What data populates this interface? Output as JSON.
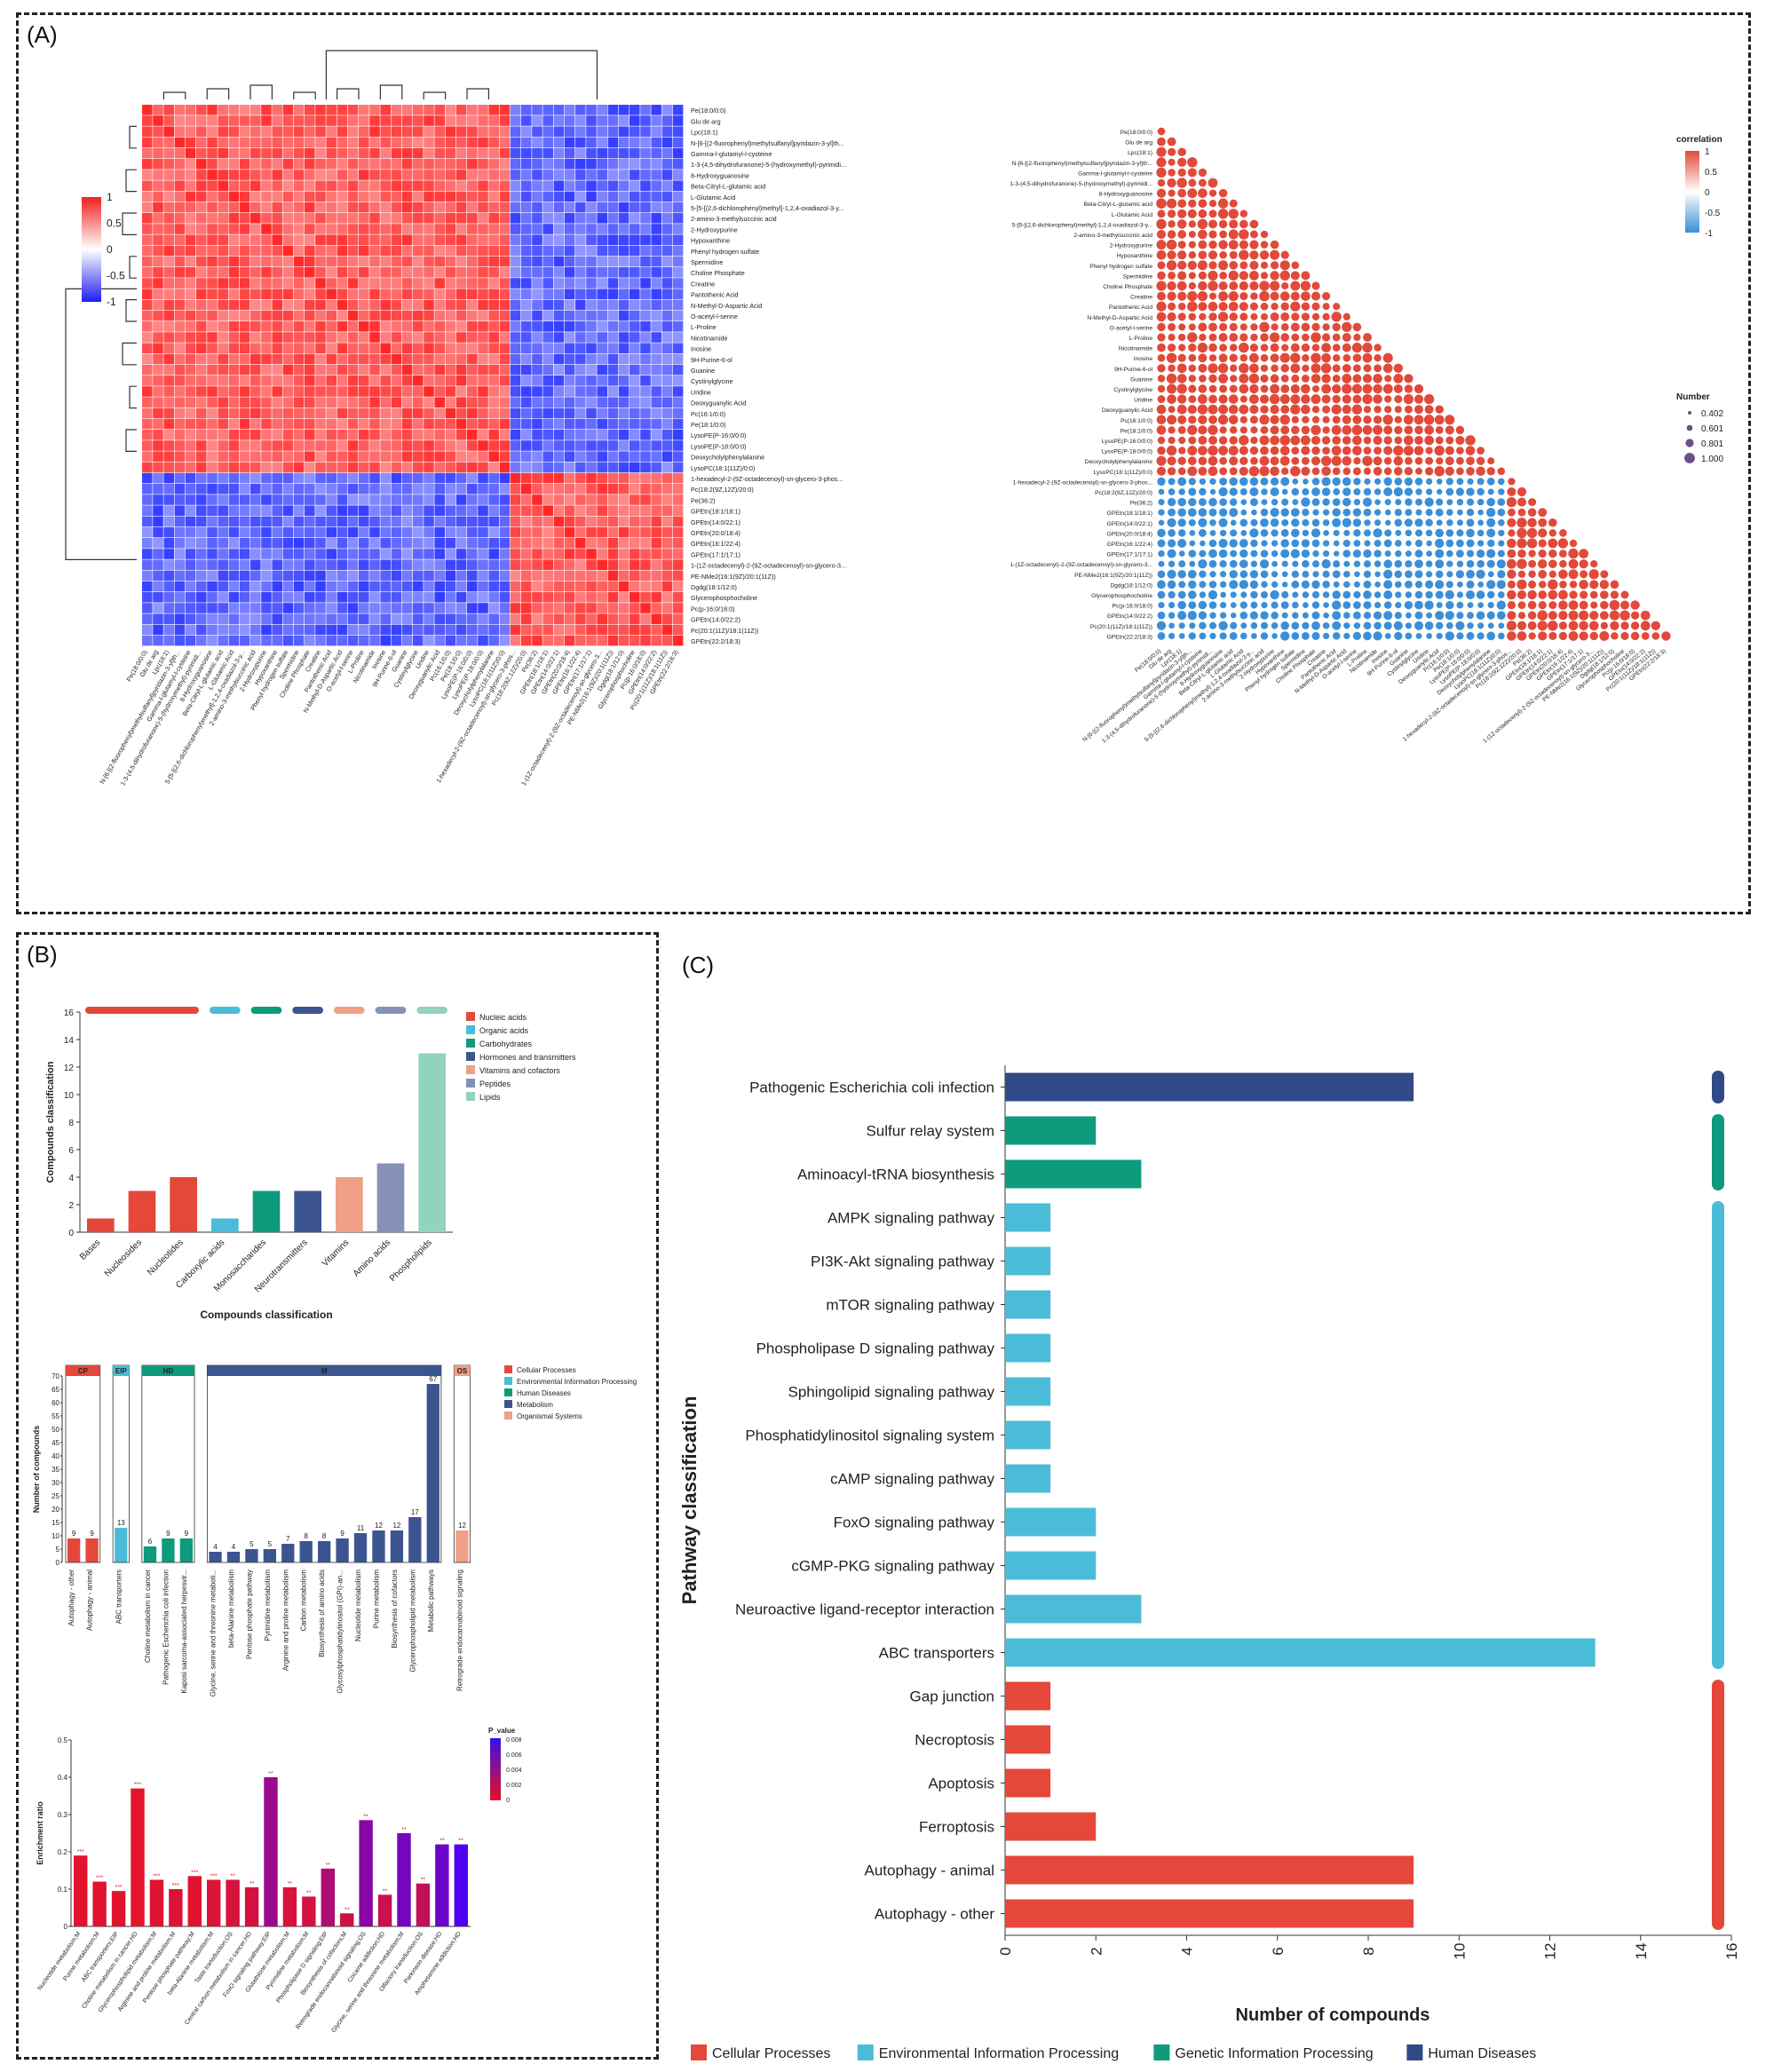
{
  "panels": {
    "a": "(A)",
    "b": "(B)",
    "c": "(C)"
  },
  "colors": {
    "red": "#e8483a",
    "blue": "#2a2fe0",
    "cp": "#e5483a",
    "eip": "#4bbcd8",
    "gip": "#0e9a7c",
    "hd": "#2f4a86",
    "met": "#3c5590",
    "os": "#f0a085"
  },
  "heatmap_a": {
    "colorbar_ticks": [
      "1",
      "0.5",
      "0",
      "-0.5",
      "-1"
    ],
    "row_labels": [
      "Pe(18:0/0:0)",
      "Glu de arg",
      "Lpc(18:1)",
      "N-[6-[(2-fluorophenyl)methylsulfanyl]pyridazin-3-yl]th...",
      "Gamma-l-glutamyl-l-cysteine",
      "1-3-(4,5-dihydrofuranone)-5-(hydroxymethyl)-pyrimidi...",
      "8-Hydroxyguanosine",
      "Beta-Citryl-L-glutamic acid",
      "L-Glutamic Acid",
      "5-[5-[(2,6-dichlorophenyl)methyl]-1,2,4-oxadiazol-3-y...",
      "2-amino-3-methylsuccinic acid",
      "2-Hydroxypurine",
      "Hypoxanthine",
      "Phenyl hydrogen sulfate",
      "Spermidine",
      "Choline Phosphate",
      "Creatine",
      "Pantothenic Acid",
      "N-Methyl-D-Aspartic Acid",
      "O-acetyl-l-serine",
      "L-Proline",
      "Nicotinamide",
      "Inosine",
      "9H-Purine-6-ol",
      "Guanine",
      "Cystinylglycine",
      "Uridine",
      "Deoxyguanylic Acid",
      "Pc(16:1/0:0)",
      "Pe(18:1/0:0)",
      "LysoPE(P-16:0/0:0)",
      "LysoPE(P-18:0/0:0)",
      "Deoxycholylphenylalanine",
      "LysoPC(18:1(11Z)/0:0)",
      "1-hexadecyl-2-(9Z-octadecenoyl)-sn-glycero-3-phos...",
      "Pc(18:2(9Z,12Z)/20:0)",
      "Pe(36:2)",
      "GPEtn(18:1/18:1)",
      "GPEtn(14:0/22:1)",
      "GPEtn(20:0/18:4)",
      "GPEtn(16:1/22:4)",
      "GPEtn(17:1/17:1)",
      "1-(1Z-octadecenyl)-2-(9Z-octadecenoyl)-sn-glycero-3...",
      "PE-NMe2(16:1(9Z)/20:1(11Z))",
      "Dgdg(18:1/12:0)",
      "Glycerophosphocholine",
      "Pc(p-16:0/18:0)",
      "GPEtn(14:0/22:2)",
      "Pc(20:1(11Z)/18:1(11Z))",
      "GPEtn(22:2/18:3)"
    ],
    "group_split": 34
  },
  "corr_b": {
    "legend_title": "correlation",
    "ticks": [
      "1",
      "0.5",
      "0",
      "-0.5",
      "-1"
    ],
    "size_title": "Number",
    "sizes": [
      "0.402",
      "0.601",
      "0.801",
      "1.000"
    ]
  },
  "chart_data": [
    {
      "type": "bar",
      "id": "compound-classes",
      "title": "",
      "xlabel": "Compounds classification",
      "ylabel": "Compounds classification",
      "ylim": [
        0,
        16
      ],
      "yticks": [
        "0",
        "2",
        "4",
        "6",
        "8",
        "10",
        "12",
        "14",
        "16"
      ],
      "categories": [
        "Bases",
        "Nucleosides",
        "Nucleotides",
        "Carboxylic acids",
        "Monosaccharides",
        "Neurotransmitters",
        "Vitamins",
        "Amino acids",
        "Phospholipids"
      ],
      "values": [
        1,
        3,
        4,
        1,
        3,
        3,
        4,
        5,
        13
      ],
      "groups": [
        {
          "name": "Nucleic acids",
          "color": "#e5483a",
          "count": 3
        },
        {
          "name": "Organic acids",
          "color": "#4bbcd8",
          "count": 1
        },
        {
          "name": "Carbohydrates",
          "color": "#0e9a7c",
          "count": 1
        },
        {
          "name": "Hormones and transmitters",
          "color": "#3c5590",
          "count": 1
        },
        {
          "name": "Vitamins and cofactors",
          "color": "#f0a085",
          "count": 1
        },
        {
          "name": "Peptides",
          "color": "#8591b8",
          "count": 1
        },
        {
          "name": "Lipids",
          "color": "#92d3c0",
          "count": 1
        }
      ]
    },
    {
      "type": "bar",
      "id": "kegg-level1",
      "title": "",
      "xlabel": "",
      "ylabel": "Number of compounds",
      "ylim": [
        0,
        70
      ],
      "yticks": [
        "0",
        "5",
        "10",
        "15",
        "20",
        "25",
        "30",
        "35",
        "40",
        "45",
        "50",
        "55",
        "60",
        "65",
        "70"
      ],
      "groups": [
        {
          "short": "CP",
          "name": "Cellular Processes",
          "color": "#e5483a",
          "categories": [
            "Autophagy - other",
            "Autophagy - animal"
          ],
          "values": [
            9,
            9
          ]
        },
        {
          "short": "EIP",
          "name": "Environmental Information Processing",
          "color": "#4bbcd8",
          "categories": [
            "ABC transporters"
          ],
          "values": [
            13
          ]
        },
        {
          "short": "HD",
          "name": "Human Diseases",
          "color": "#0e9a7c",
          "categories": [
            "Choline metabolism in cancer",
            "Pathogenic Escherichia coli infection",
            "Kaposi sarcoma-associated herpesvir..."
          ],
          "values": [
            6,
            9,
            9
          ]
        },
        {
          "short": "M",
          "name": "Metabolism",
          "color": "#3c5590",
          "categories": [
            "Glycine, serine and threonine metaboli...",
            "beta-Alanine metabolism",
            "Pentose phosphate pathway",
            "Pyrimidine metabolism",
            "Arginine and proline metabolism",
            "Carbon metabolism",
            "Biosynthesis of amino acids",
            "Glycosylphosphatidylinositol (GPI)-an...",
            "Nucleotide metabolism",
            "Purine metabolism",
            "Biosynthesis of cofactors",
            "Glycerophospholipid metabolism",
            "Metabolic pathways"
          ],
          "values": [
            4,
            4,
            5,
            5,
            7,
            8,
            8,
            9,
            11,
            12,
            12,
            17,
            67
          ]
        },
        {
          "short": "OS",
          "name": "Organismal Systems",
          "color": "#f0a085",
          "categories": [
            "Retrograde endocannabinoid signaling"
          ],
          "values": [
            12
          ]
        }
      ]
    },
    {
      "type": "bar",
      "id": "enrichment",
      "title": "",
      "xlabel": "",
      "ylabel": "Enrichment ratio",
      "ylim": [
        0,
        0.5
      ],
      "yticks": [
        "0",
        "0.1",
        "0.2",
        "0.3",
        "0.4",
        "0.5"
      ],
      "legend_title": "P_value",
      "legend_ticks": [
        "0.008",
        "0.006",
        "0.004",
        "0.002",
        "0"
      ],
      "categories": [
        "Nucleotide metabolism;M",
        "Purine metabolism;M",
        "ABC transporters;EIP",
        "Choline metabolism in cancer;HD",
        "Glycerophospholipid metabolism;M",
        "Arginine and proline metabolism;M",
        "Pentose phosphate pathway;M",
        "beta-Alanine metabolism;M",
        "Taste transduction;OS",
        "Central carbon metabolism in cancer;HD",
        "FoxO signaling pathway;EIP",
        "Glutathione metabolism;M",
        "Pyrimidine metabolism;M",
        "Phospholipase D signaling;EIP",
        "Biosynthesis of cofactors;M",
        "Retrograde endocannabinoid signaling;OS",
        "Cocaine addiction;HD",
        "Glycine, serine and threonine metabolism;M",
        "Olfactory transduction;OS",
        "Parkinson disease;HD",
        "Amphetamine addiction;HD"
      ],
      "values": [
        0.19,
        0.12,
        0.095,
        0.37,
        0.125,
        0.1,
        0.135,
        0.125,
        0.125,
        0.105,
        0.4,
        0.105,
        0.08,
        0.155,
        0.035,
        0.285,
        0.085,
        0.25,
        0.115,
        0.22,
        0.22
      ],
      "pvalues": [
        0.0002,
        0.0003,
        0.0002,
        0.0001,
        0.0004,
        0.0005,
        0.0003,
        0.0006,
        0.0008,
        0.0009,
        0.004,
        0.0008,
        0.001,
        0.003,
        0.0012,
        0.005,
        0.0015,
        0.006,
        0.002,
        0.0065,
        0.008
      ],
      "stars": [
        "***",
        "***",
        "***",
        "***",
        "***",
        "***",
        "***",
        "***",
        "**",
        "**",
        "**",
        "**",
        "**",
        "**",
        "**",
        "**",
        "**",
        "**",
        "**",
        "**",
        "**"
      ]
    },
    {
      "type": "bar",
      "id": "pathway-classification",
      "orientation": "horizontal",
      "title": "",
      "xlabel": "Number of compounds",
      "ylabel": "Pathway classification",
      "xlim": [
        0,
        16
      ],
      "xticks": [
        "0",
        "2",
        "4",
        "6",
        "8",
        "10",
        "12",
        "14",
        "16"
      ],
      "categories": [
        "Pathogenic Escherichia coli infection",
        "Sulfur relay system",
        "Aminoacyl-tRNA biosynthesis",
        "AMPK signaling pathway",
        "PI3K-Akt signaling pathway",
        "mTOR signaling pathway",
        "Phospholipase D signaling pathway",
        "Sphingolipid signaling pathway",
        "Phosphatidylinositol signaling system",
        "cAMP signaling pathway",
        "FoxO signaling pathway",
        "cGMP-PKG signaling pathway",
        "Neuroactive ligand-receptor interaction",
        "ABC transporters",
        "Gap junction",
        "Necroptosis",
        "Apoptosis",
        "Ferroptosis",
        "Autophagy - animal",
        "Autophagy - other"
      ],
      "values": [
        9,
        2,
        3,
        1,
        1,
        1,
        1,
        1,
        1,
        1,
        2,
        2,
        3,
        13,
        1,
        1,
        1,
        2,
        9,
        9
      ],
      "series_of": [
        "Human Diseases",
        "Genetic Information Processing",
        "Genetic Information Processing",
        "Environmental Information Processing",
        "Environmental Information Processing",
        "Environmental Information Processing",
        "Environmental Information Processing",
        "Environmental Information Processing",
        "Environmental Information Processing",
        "Environmental Information Processing",
        "Environmental Information Processing",
        "Environmental Information Processing",
        "Environmental Information Processing",
        "Environmental Information Processing",
        "Cellular Processes",
        "Cellular Processes",
        "Cellular Processes",
        "Cellular Processes",
        "Cellular Processes",
        "Cellular Processes"
      ],
      "legend": [
        {
          "name": "Cellular Processes",
          "color": "#e5483a"
        },
        {
          "name": "Environmental Information Processing",
          "color": "#4bbcd8"
        },
        {
          "name": "Genetic Information Processing",
          "color": "#0e9a7c"
        },
        {
          "name": "Human Diseases",
          "color": "#2f4a86"
        }
      ]
    }
  ]
}
